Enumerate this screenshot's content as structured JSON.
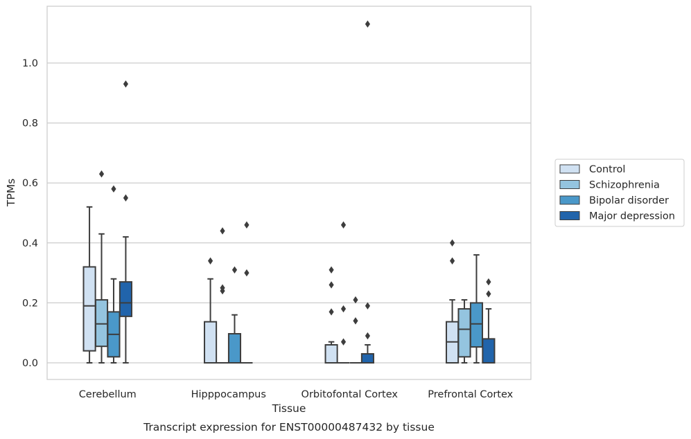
{
  "chart_data": {
    "type": "box",
    "title": "Transcript expression for ENST00000487432 by tissue",
    "xlabel": "Tissue",
    "ylabel": "TPMs",
    "ylim": [
      -0.055,
      1.19
    ],
    "yticks": [
      0.0,
      0.2,
      0.4,
      0.6,
      0.8,
      1.0
    ],
    "ytick_labels": [
      "0.0",
      "0.2",
      "0.4",
      "0.6",
      "0.8",
      "1.0"
    ],
    "grid": "horizontal",
    "legend_position": "right",
    "categories": [
      "Cerebellum",
      "Hipppocampus",
      "Orbitofontal Cortex",
      "Prefrontal Cortex"
    ],
    "series": [
      {
        "name": "Control",
        "color": "#d0e1f2",
        "boxes": [
          {
            "whislo": 0.0,
            "q1": 0.04,
            "med": 0.19,
            "q3": 0.32,
            "whishi": 0.52,
            "fliers": []
          },
          {
            "whislo": 0.0,
            "q1": 0.0,
            "med": 0.0,
            "q3": 0.137,
            "whishi": 0.28,
            "fliers": [
              0.34
            ]
          },
          {
            "whislo": 0.0,
            "q1": 0.0,
            "med": 0.0,
            "q3": 0.06,
            "whishi": 0.07,
            "fliers": [
              0.17,
              0.26,
              0.31
            ]
          },
          {
            "whislo": 0.0,
            "q1": 0.0,
            "med": 0.07,
            "q3": 0.137,
            "whishi": 0.21,
            "fliers": [
              0.34,
              0.4
            ]
          }
        ]
      },
      {
        "name": "Schizophrenia",
        "color": "#94c4df",
        "boxes": [
          {
            "whislo": 0.0,
            "q1": 0.055,
            "med": 0.13,
            "q3": 0.21,
            "whishi": 0.43,
            "fliers": [
              0.63
            ]
          },
          {
            "whislo": 0.0,
            "q1": 0.0,
            "med": 0.0,
            "q3": 0.0,
            "whishi": 0.0,
            "fliers": [
              0.24,
              0.25,
              0.44
            ]
          },
          {
            "whislo": 0.0,
            "q1": 0.0,
            "med": 0.0,
            "q3": 0.0,
            "whishi": 0.0,
            "fliers": [
              0.07,
              0.18,
              0.46
            ]
          },
          {
            "whislo": 0.0,
            "q1": 0.02,
            "med": 0.112,
            "q3": 0.18,
            "whishi": 0.21,
            "fliers": []
          }
        ]
      },
      {
        "name": "Bipolar disorder",
        "color": "#4a98c9",
        "boxes": [
          {
            "whislo": 0.0,
            "q1": 0.02,
            "med": 0.095,
            "q3": 0.17,
            "whishi": 0.28,
            "fliers": [
              0.58
            ]
          },
          {
            "whislo": 0.0,
            "q1": 0.0,
            "med": 0.0,
            "q3": 0.097,
            "whishi": 0.16,
            "fliers": [
              0.31
            ]
          },
          {
            "whislo": 0.0,
            "q1": 0.0,
            "med": 0.0,
            "q3": 0.0,
            "whishi": 0.0,
            "fliers": [
              0.14,
              0.21
            ]
          },
          {
            "whislo": 0.0,
            "q1": 0.053,
            "med": 0.13,
            "q3": 0.2,
            "whishi": 0.36,
            "fliers": []
          }
        ]
      },
      {
        "name": "Major depression",
        "color": "#2164ab",
        "boxes": [
          {
            "whislo": 0.0,
            "q1": 0.155,
            "med": 0.2,
            "q3": 0.27,
            "whishi": 0.42,
            "fliers": [
              0.55,
              0.93
            ]
          },
          {
            "whislo": 0.0,
            "q1": 0.0,
            "med": 0.0,
            "q3": 0.0,
            "whishi": 0.0,
            "fliers": [
              0.3,
              0.46
            ]
          },
          {
            "whislo": 0.0,
            "q1": 0.0,
            "med": 0.0,
            "q3": 0.03,
            "whishi": 0.06,
            "fliers": [
              0.09,
              0.19,
              1.13
            ]
          },
          {
            "whislo": 0.0,
            "q1": 0.0,
            "med": 0.0,
            "q3": 0.08,
            "whishi": 0.18,
            "fliers": [
              0.23,
              0.27
            ]
          }
        ]
      }
    ]
  }
}
